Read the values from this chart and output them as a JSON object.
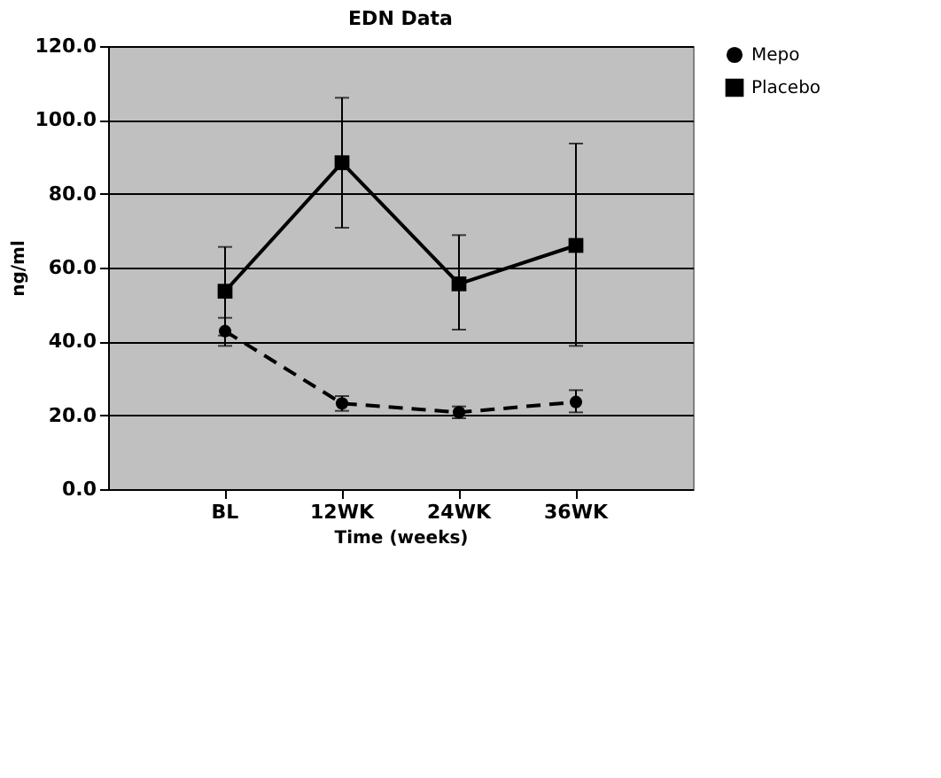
{
  "chart_data": {
    "type": "line",
    "title": "EDN Data",
    "xlabel": "Time (weeks)",
    "ylabel": "ng/ml",
    "categories": [
      "BL",
      "12WK",
      "24WK",
      "36WK"
    ],
    "series": [
      {
        "name": "Mepo",
        "color": "#000000",
        "marker": "circle",
        "line_style": "dashed",
        "values": [
          42.8,
          23.2,
          20.8,
          23.6
        ],
        "errors": [
          [
            38.8,
            46.4
          ],
          [
            21.2,
            25.2
          ],
          [
            19.2,
            22.4
          ],
          [
            20.8,
            26.8
          ]
        ]
      },
      {
        "name": "Placebo",
        "color": "#000000",
        "marker": "square",
        "line_style": "solid",
        "values": [
          53.6,
          88.4,
          55.6,
          66.0
        ],
        "errors": [
          [
            41.6,
            65.6
          ],
          [
            70.8,
            106.0
          ],
          [
            43.2,
            68.8
          ],
          [
            38.8,
            93.6
          ]
        ]
      }
    ],
    "ylim": [
      0,
      120
    ],
    "yticks": [
      {
        "value": 0,
        "label": "0.0"
      },
      {
        "value": 20,
        "label": "20.0"
      },
      {
        "value": 40,
        "label": "40.0"
      },
      {
        "value": 60,
        "label": "60.0"
      },
      {
        "value": 80,
        "label": "80.0"
      },
      {
        "value": 100,
        "label": "100.0"
      },
      {
        "value": 120,
        "label": "120.0"
      }
    ],
    "grid": "y",
    "legend": "right"
  }
}
